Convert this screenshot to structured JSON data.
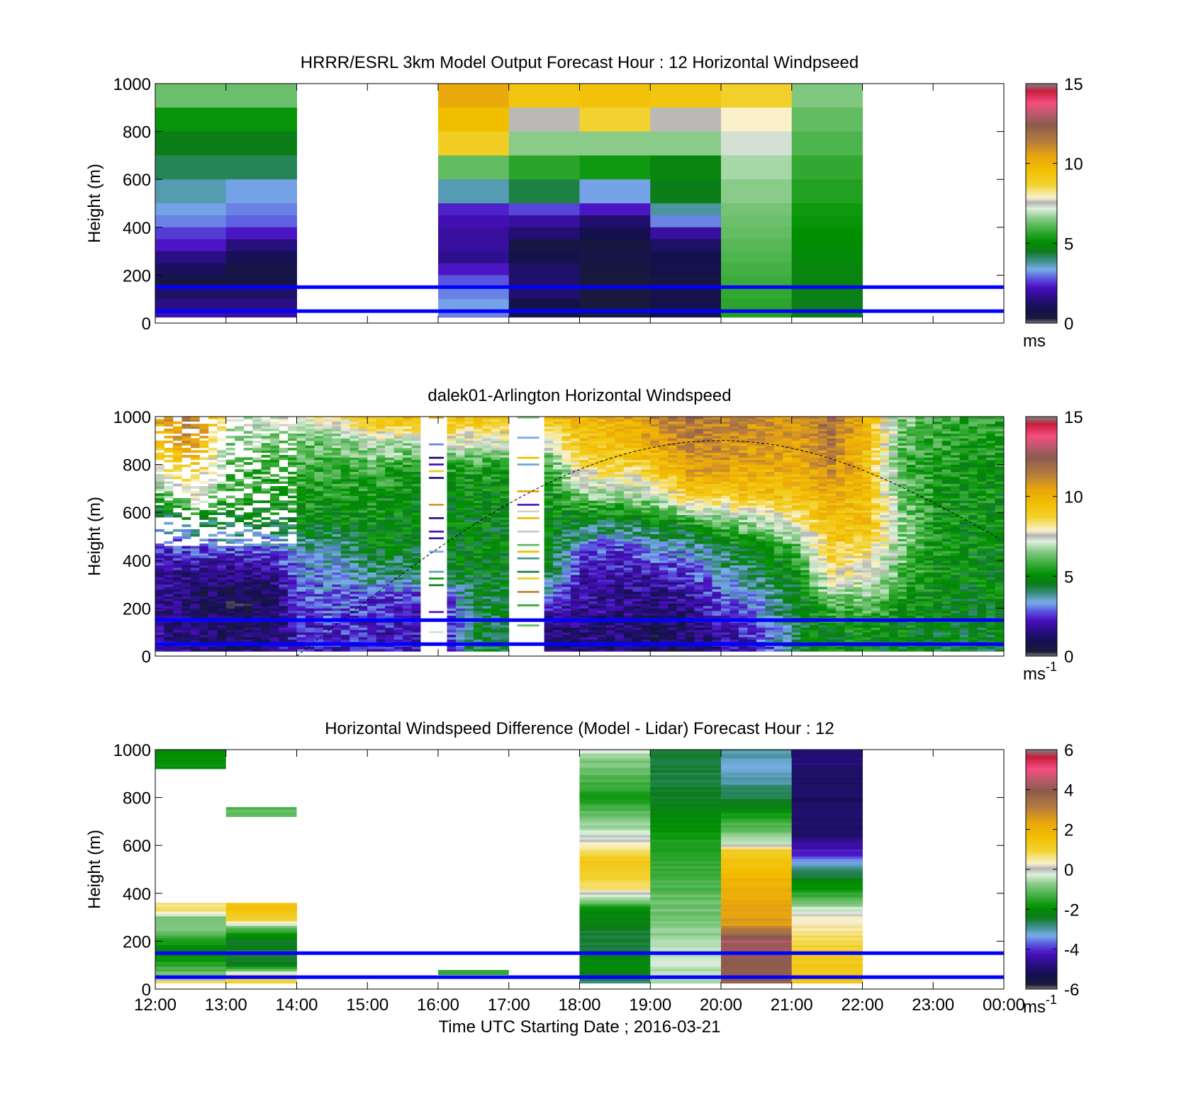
{
  "chart_data": [
    {
      "type": "heatmap",
      "title": "HRRR/ESRL 3km Model Output   Forecast Hour : 12 Horizontal Windpseed",
      "ylabel": "Height (m)",
      "xlabel": "",
      "ylim": [
        0,
        1000
      ],
      "yticks": [
        "0",
        "200",
        "400",
        "600",
        "800",
        "1000"
      ],
      "x_hours": [
        12,
        13,
        14,
        15,
        16,
        17,
        18,
        19,
        20,
        21,
        22,
        23,
        24
      ],
      "heights_top": [
        1000,
        900,
        800,
        700,
        600,
        500,
        450,
        400,
        350,
        300,
        250,
        200,
        150,
        100,
        50,
        25
      ],
      "columns": [
        {
          "start": 12,
          "end": 13,
          "values": [
            6.3,
            5.2,
            4.6,
            4.2,
            3.7,
            3.3,
            3.1,
            2.6,
            2.3,
            1.6,
            1.1,
            0.6,
            1.2,
            1.6,
            2.0,
            2.2
          ]
        },
        {
          "start": 13,
          "end": 14,
          "values": [
            6.3,
            5.2,
            4.6,
            4.2,
            3.3,
            3.1,
            2.9,
            2.3,
            1.5,
            1.0,
            0.6,
            0.6,
            1.2,
            1.6,
            1.9,
            2.1
          ]
        },
        {
          "start": 16,
          "end": 17,
          "values": [
            10.3,
            9.6,
            8.9,
            6.2,
            3.7,
            2.4,
            2.1,
            1.9,
            1.9,
            1.7,
            2.3,
            2.8,
            3.1,
            3.3,
            3.1,
            2.6
          ]
        },
        {
          "start": 17,
          "end": 18,
          "values": [
            9.3,
            7.6,
            6.6,
            5.6,
            4.3,
            2.7,
            1.9,
            1.4,
            0.6,
            0.8,
            1.2,
            1.3,
            1.3,
            0.8,
            0.7,
            0.7
          ]
        },
        {
          "start": 18,
          "end": 19,
          "values": [
            9.4,
            8.7,
            6.6,
            5.3,
            3.3,
            2.3,
            1.3,
            0.9,
            0.5,
            0.6,
            0.5,
            0.4,
            0.4,
            0.4,
            0.3,
            0.3
          ]
        },
        {
          "start": 19,
          "end": 20,
          "values": [
            9.3,
            7.6,
            6.6,
            4.8,
            4.6,
            3.8,
            3.1,
            1.9,
            1.2,
            0.9,
            0.8,
            0.6,
            0.7,
            0.8,
            0.9,
            0.9
          ]
        },
        {
          "start": 20,
          "end": 21,
          "values": [
            8.8,
            7.9,
            7.3,
            6.8,
            6.6,
            6.4,
            6.3,
            6.2,
            6.1,
            6.0,
            5.9,
            5.8,
            5.7,
            5.6,
            5.5,
            5.4
          ]
        },
        {
          "start": 21,
          "end": 22,
          "values": [
            6.5,
            6.2,
            6.0,
            5.7,
            5.5,
            5.3,
            5.2,
            5.1,
            5.0,
            4.9,
            4.8,
            4.8,
            4.7,
            4.6,
            4.6,
            4.5
          ]
        }
      ],
      "hlines": [
        150,
        50
      ],
      "colorbar": {
        "min": 0,
        "max": 15,
        "ticks": [
          "0",
          "5",
          "10",
          "15"
        ],
        "unit": "ms"
      }
    },
    {
      "type": "heatmap",
      "title": "dalek01-Arlington  Horizontal Windspeed",
      "ylabel": "Height (m)",
      "xlabel": "",
      "ylim": [
        0,
        1000
      ],
      "yticks": [
        "0",
        "200",
        "400",
        "600",
        "800",
        "1000"
      ],
      "x_hours": [
        12,
        13,
        14,
        15,
        16,
        17,
        18,
        19,
        20,
        21,
        22,
        23,
        24
      ],
      "profiles": [
        {
          "t": 12.0,
          "v": [
            2.0,
            1.8,
            1.6,
            1.8,
            2.5,
            3.5,
            6.0,
            8.0,
            9.5,
            10.5
          ]
        },
        {
          "t": 12.5,
          "v": [
            1.6,
            1.4,
            1.2,
            1.6,
            2.8,
            4.5,
            7.5,
            9.5,
            11.0,
            11.5
          ]
        },
        {
          "t": 13.0,
          "v": [
            1.3,
            1.0,
            0.9,
            1.5,
            2.7,
            4.5,
            5.5,
            6.0,
            6.5,
            7.5
          ]
        },
        {
          "t": 13.5,
          "v": [
            1.5,
            1.1,
            0.9,
            1.5,
            2.8,
            4.5,
            5.5,
            6.0,
            6.3,
            7.3
          ]
        },
        {
          "t": 14.0,
          "v": [
            2.4,
            2.2,
            2.5,
            3.0,
            3.6,
            5.0,
            5.5,
            5.8,
            6.2,
            7.5
          ]
        },
        {
          "t": 14.5,
          "v": [
            2.2,
            2.6,
            3.0,
            3.3,
            3.8,
            4.7,
            5.3,
            5.6,
            6.4,
            8.0
          ]
        },
        {
          "t": 15.0,
          "v": [
            2.1,
            2.3,
            2.5,
            4.0,
            4.8,
            5.1,
            5.4,
            5.8,
            7.2,
            9.5
          ]
        },
        {
          "t": 15.5,
          "v": [
            2.0,
            2.1,
            2.3,
            4.0,
            4.6,
            4.8,
            5.0,
            5.4,
            7.0,
            10.0
          ]
        },
        {
          "t": 16.0,
          "v": [
            1.9,
            2.0,
            2.2,
            4.5,
            4.8,
            4.8,
            5.0,
            5.4,
            7.5,
            9.5
          ]
        },
        {
          "t": 16.5,
          "v": [
            4.5,
            4.5,
            4.5,
            4.7,
            4.8,
            4.8,
            5.0,
            5.4,
            7.5,
            9.5
          ]
        },
        {
          "t": 17.0,
          "v": [
            4.5,
            4.5,
            4.5,
            4.7,
            4.8,
            4.8,
            5.0,
            5.4,
            7.5,
            9.5
          ]
        },
        {
          "t": 17.5,
          "v": [
            1.0,
            1.3,
            2.5,
            4.5,
            4.8,
            5.0,
            5.2,
            5.5,
            7.5,
            10.0
          ]
        },
        {
          "t": 18.0,
          "v": [
            1.4,
            1.5,
            1.8,
            1.9,
            3.0,
            4.5,
            6.5,
            8.5,
            9.3,
            9.8
          ]
        },
        {
          "t": 18.5,
          "v": [
            1.2,
            1.5,
            1.7,
            2.0,
            2.5,
            4.5,
            6.8,
            8.3,
            9.6,
            10.2
          ]
        },
        {
          "t": 19.0,
          "v": [
            0.9,
            1.1,
            1.4,
            2.0,
            3.3,
            4.8,
            7.0,
            9.0,
            10.4,
            11.0
          ]
        },
        {
          "t": 19.5,
          "v": [
            1.0,
            1.3,
            1.8,
            2.7,
            3.5,
            5.5,
            9.0,
            10.5,
            11.2,
            11.8
          ]
        },
        {
          "t": 20.0,
          "v": [
            1.6,
            2.3,
            2.9,
            3.4,
            4.5,
            6.2,
            9.0,
            10.5,
            11.0,
            11.3
          ]
        },
        {
          "t": 20.5,
          "v": [
            2.3,
            2.8,
            3.5,
            4.2,
            5.0,
            7.0,
            9.5,
            10.2,
            10.8,
            11.0
          ]
        },
        {
          "t": 21.0,
          "v": [
            4.6,
            4.4,
            4.5,
            5.0,
            5.8,
            8.0,
            9.5,
            10.0,
            10.5,
            10.8
          ]
        },
        {
          "t": 21.5,
          "v": [
            4.8,
            5.0,
            6.0,
            8.0,
            9.0,
            9.5,
            10.0,
            11.0,
            11.5,
            11.8
          ]
        },
        {
          "t": 22.0,
          "v": [
            4.8,
            5.2,
            6.3,
            7.5,
            8.5,
            9.5,
            9.6,
            9.5,
            9.6,
            9.8
          ]
        },
        {
          "t": 22.5,
          "v": [
            4.7,
            4.9,
            5.3,
            6.0,
            6.5,
            6.5,
            6.3,
            6.0,
            6.2,
            6.5
          ]
        },
        {
          "t": 23.0,
          "v": [
            4.6,
            4.7,
            4.9,
            5.0,
            5.2,
            5.3,
            5.3,
            5.4,
            5.6,
            5.9
          ]
        },
        {
          "t": 23.5,
          "v": [
            4.6,
            4.7,
            4.8,
            4.9,
            5.0,
            5.0,
            5.1,
            5.2,
            5.4,
            5.6
          ]
        }
      ],
      "gaps": [
        [
          15.75,
          16.1
        ],
        [
          17.0,
          17.45
        ]
      ],
      "sunline": {
        "start": 14.0,
        "peak": 20.0,
        "peak_height": 900,
        "end_height": 480
      },
      "hlines": [
        150,
        50
      ],
      "colorbar": {
        "min": 0,
        "max": 15,
        "ticks": [
          "0",
          "5",
          "10",
          "15"
        ],
        "unit": "ms",
        "unit_exp": "-1"
      }
    },
    {
      "type": "heatmap",
      "title": "Horizontal Windspeed Difference (Model - Lidar) Forecast Hour : 12",
      "ylabel": "Height (m)",
      "xlabel": "Time UTC  Starting Date ; 2016-03-21",
      "ylim": [
        0,
        1000
      ],
      "yticks": [
        "0",
        "200",
        "400",
        "600",
        "800",
        "1000"
      ],
      "xticks": [
        "12:00",
        "13:00",
        "14:00",
        "15:00",
        "16:00",
        "17:00",
        "18:00",
        "19:00",
        "20:00",
        "21:00",
        "22:00",
        "23:00",
        "00:00"
      ],
      "x_hours": [
        12,
        13,
        14,
        15,
        16,
        17,
        18,
        19,
        20,
        21,
        22,
        23,
        24
      ],
      "blocks": [
        {
          "start": 12,
          "end": 13,
          "h0": 920,
          "h1": 1000,
          "value": -2.0
        },
        {
          "start": 13,
          "end": 14,
          "h0": 720,
          "h1": 760,
          "value": -1.2
        },
        {
          "start": 16,
          "end": 17,
          "h0": 60,
          "h1": 80,
          "value": -1.5
        }
      ],
      "columns": [
        {
          "start": 12,
          "end": 13,
          "from": 25,
          "to": 360,
          "stops": [
            [
              25,
              1.0
            ],
            [
              60,
              -0.8
            ],
            [
              100,
              -1.5
            ],
            [
              170,
              -2.2
            ],
            [
              250,
              -0.8
            ],
            [
              300,
              -1.0
            ],
            [
              330,
              0.8
            ],
            [
              360,
              0.6
            ]
          ]
        },
        {
          "start": 13,
          "end": 14,
          "from": 25,
          "to": 360,
          "stops": [
            [
              25,
              1.2
            ],
            [
              60,
              0.6
            ],
            [
              100,
              -2.3
            ],
            [
              200,
              -2.5
            ],
            [
              260,
              -1.0
            ],
            [
              285,
              0.8
            ],
            [
              340,
              1.5
            ],
            [
              360,
              1.5
            ]
          ]
        },
        {
          "start": 18,
          "end": 19,
          "from": 25,
          "to": 1000,
          "stops": [
            [
              25,
              -3.0
            ],
            [
              80,
              -2.0
            ],
            [
              200,
              -2.6
            ],
            [
              330,
              -2.0
            ],
            [
              420,
              0.6
            ],
            [
              530,
              1.4
            ],
            [
              600,
              0.3
            ],
            [
              680,
              -0.6
            ],
            [
              800,
              -1.7
            ],
            [
              950,
              -0.8
            ],
            [
              1000,
              -0.2
            ]
          ]
        },
        {
          "start": 19,
          "end": 20,
          "from": 25,
          "to": 1000,
          "stops": [
            [
              25,
              -0.6
            ],
            [
              120,
              -0.3
            ],
            [
              250,
              -0.7
            ],
            [
              400,
              -1.1
            ],
            [
              600,
              -1.6
            ],
            [
              800,
              -2.4
            ],
            [
              1000,
              -2.6
            ]
          ]
        },
        {
          "start": 20,
          "end": 21,
          "from": 25,
          "to": 1000,
          "stops": [
            [
              25,
              3.8
            ],
            [
              200,
              4.3
            ],
            [
              270,
              2.6
            ],
            [
              450,
              2.0
            ],
            [
              580,
              1.2
            ],
            [
              610,
              -0.4
            ],
            [
              800,
              -2.5
            ],
            [
              900,
              -3.2
            ],
            [
              1000,
              -3.0
            ]
          ]
        },
        {
          "start": 21,
          "end": 22,
          "from": 25,
          "to": 1000,
          "stops": [
            [
              25,
              1.4
            ],
            [
              150,
              1.2
            ],
            [
              300,
              0.2
            ],
            [
              420,
              -1.8
            ],
            [
              520,
              -3.0
            ],
            [
              560,
              -4.0
            ],
            [
              650,
              -5.0
            ],
            [
              800,
              -5.1
            ],
            [
              1000,
              -4.8
            ]
          ]
        }
      ],
      "hlines": [
        150,
        50
      ],
      "colorbar": {
        "min": -6,
        "max": 6,
        "ticks": [
          "-6",
          "-4",
          "-2",
          "0",
          "2",
          "4",
          "6"
        ],
        "unit": "ms",
        "unit_exp": "-1"
      }
    }
  ]
}
